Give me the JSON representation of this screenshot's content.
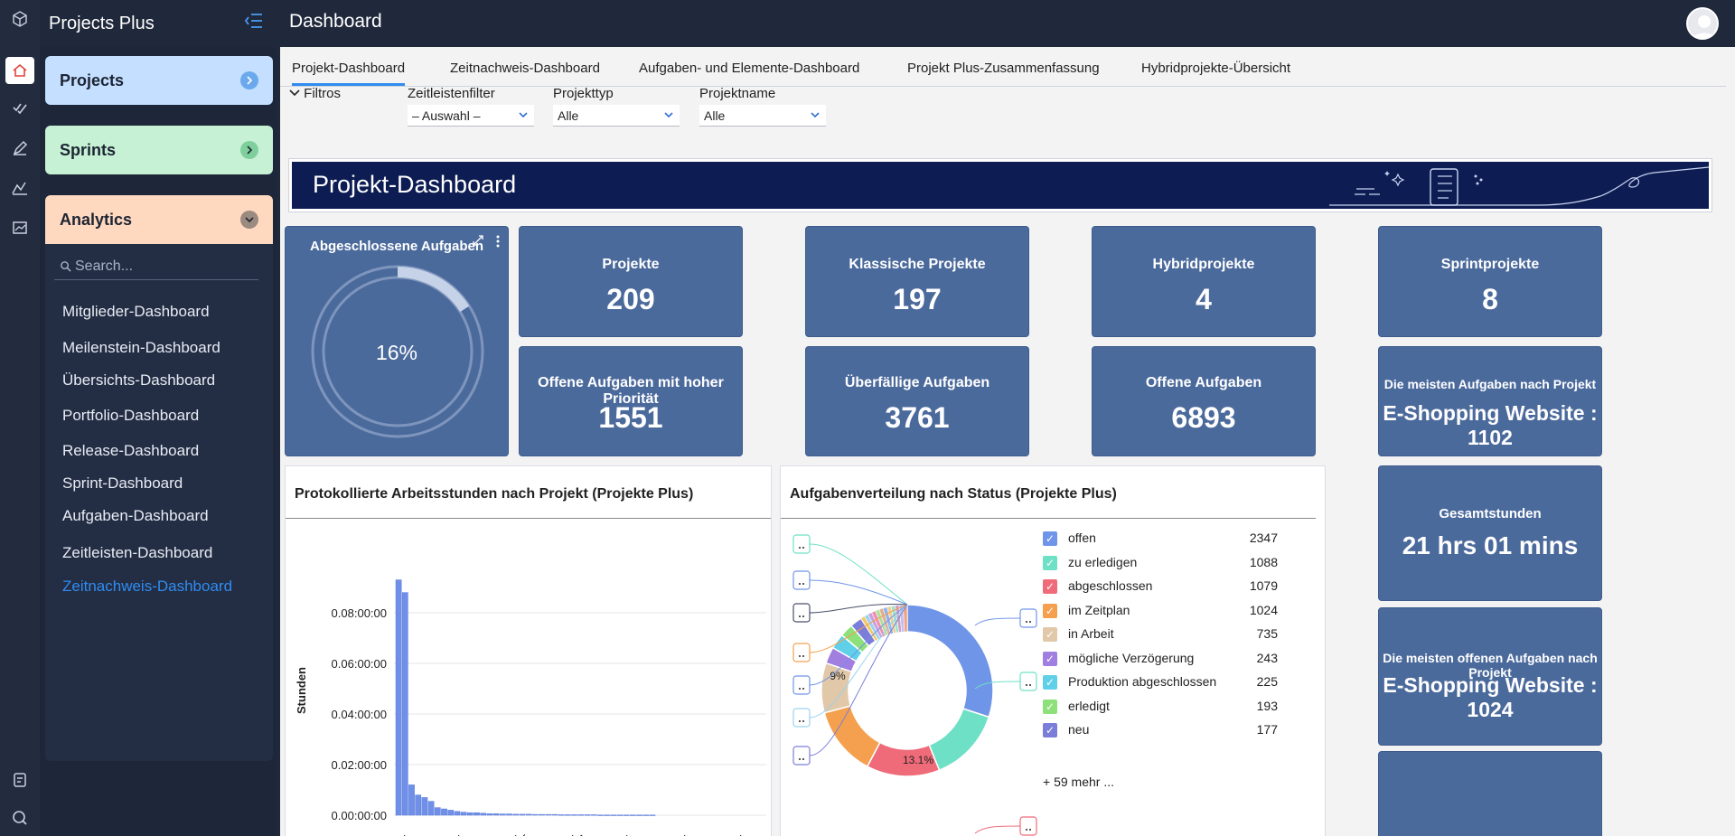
{
  "app": {
    "name": "Projects Plus"
  },
  "topbar": {
    "title": "Dashboard"
  },
  "sidebar": {
    "panels": {
      "projects": "Projects",
      "sprints": "Sprints",
      "analytics": "Analytics"
    },
    "search_placeholder": "Search...",
    "links": [
      "Mitglieder-Dashboard",
      "Meilenstein-Dashboard",
      "Übersichts-Dashboard",
      "Portfolio-Dashboard",
      "Release-Dashboard",
      "Sprint-Dashboard",
      "Aufgaben-Dashboard",
      "Zeitleisten-Dashboard",
      "Zeitnachweis-Dashboard"
    ],
    "active_link": "Zeitnachweis-Dashboard"
  },
  "tabs": [
    "Projekt-Dashboard",
    "Zeitnachweis-Dashboard",
    "Aufgaben- und Elemente-Dashboard",
    "Projekt Plus-Zusammenfassung",
    "Hybridprojekte-Übersicht"
  ],
  "active_tab": "Projekt-Dashboard",
  "filters": {
    "toggle_label": "Filtros",
    "timeline": {
      "label": "Zeitleistenfilter",
      "value": "– Auswahl –"
    },
    "type": {
      "label": "Projekttyp",
      "value": "Alle"
    },
    "name": {
      "label": "Projektname",
      "value": "Alle"
    }
  },
  "banner": {
    "title": "Projekt-Dashboard"
  },
  "completed": {
    "title": "Abgeschlossene Aufgaben",
    "percent_label": "16%",
    "fraction": 0.16
  },
  "kpis": [
    {
      "label": "Projekte",
      "value": "209"
    },
    {
      "label": "Klassische Projekte",
      "value": "197"
    },
    {
      "label": "Hybridprojekte",
      "value": "4"
    },
    {
      "label": "Sprintprojekte",
      "value": "8"
    },
    {
      "label": "Offene Aufgaben mit hoher Priorität",
      "value": "1551"
    },
    {
      "label": "Überfällige Aufgaben",
      "value": "3761"
    },
    {
      "label": "Offene Aufgaben",
      "value": "6893"
    },
    {
      "label": "Die meisten Aufgaben nach Projekt",
      "value": "E-Shopping Website : 1102"
    },
    {
      "label": "Gesamtstunden",
      "value": "21 hrs 01 mins"
    },
    {
      "label": "Die meisten offenen Aufgaben nach Projekt",
      "value": "E-Shopping Website : 1024"
    }
  ],
  "hours_chart": {
    "title": "Protokollierte Arbeitsstunden nach Projekt (Projekte Plus)"
  },
  "status_chart": {
    "title": "Aufgabenverteilung nach Status (Projekte Plus)",
    "more_label": "+ 59 mehr ..."
  },
  "chart_data": [
    {
      "type": "bar",
      "title": "Protokollierte Arbeitsstunden nach Projekt (Projekte Plus)",
      "ylabel": "Stunden",
      "ylim": [
        0,
        10
      ],
      "yticks": [
        "0.00:00:00",
        "0.02:00:00",
        "0.04:00:00",
        "0.06:00:00",
        "0.08:00:00"
      ],
      "x_tick_labels": [
        "..rid..",
        "..on..",
        "..lex",
        "..DLC",
        "..App",
        "..ders",
        "..ncy",
        "..ECT"
      ],
      "values": [
        9.3,
        8.8,
        1.2,
        0.8,
        0.7,
        0.55,
        0.3,
        0.25,
        0.2,
        0.15,
        0.12,
        0.1,
        0.1,
        0.08,
        0.06,
        0.06,
        0.05,
        0.05,
        0.04,
        0.04,
        0.04,
        0.03,
        0.03,
        0.03,
        0.03,
        0.02,
        0.02,
        0.02,
        0.02,
        0.02,
        0.02,
        0.01,
        0.01,
        0.01,
        0.01,
        0.01,
        0.01,
        0.01,
        0.01,
        0.01
      ]
    },
    {
      "type": "pie",
      "title": "Aufgabenverteilung nach Status (Projekte Plus)",
      "slices": [
        {
          "name": "offen",
          "value": 2347,
          "color": "#6f95e8"
        },
        {
          "name": "zu erledigen",
          "value": 1088,
          "color": "#6ee0c5"
        },
        {
          "name": "abgeschlossen",
          "value": 1079,
          "color": "#ef6b79"
        },
        {
          "name": "im Zeitplan",
          "value": 1024,
          "color": "#f4a04f"
        },
        {
          "name": "in Arbeit",
          "value": 735,
          "color": "#e0c8a8"
        },
        {
          "name": "mögliche Verzögerung",
          "value": 243,
          "color": "#a07fe0"
        },
        {
          "name": "Produktion abgeschlossen",
          "value": 225,
          "color": "#5fd0e8"
        },
        {
          "name": "erledigt",
          "value": 193,
          "color": "#8ee07a"
        },
        {
          "name": "neu",
          "value": 177,
          "color": "#7b7ed8"
        }
      ],
      "slice_labels": [
        "13.1%",
        "9%"
      ]
    }
  ]
}
